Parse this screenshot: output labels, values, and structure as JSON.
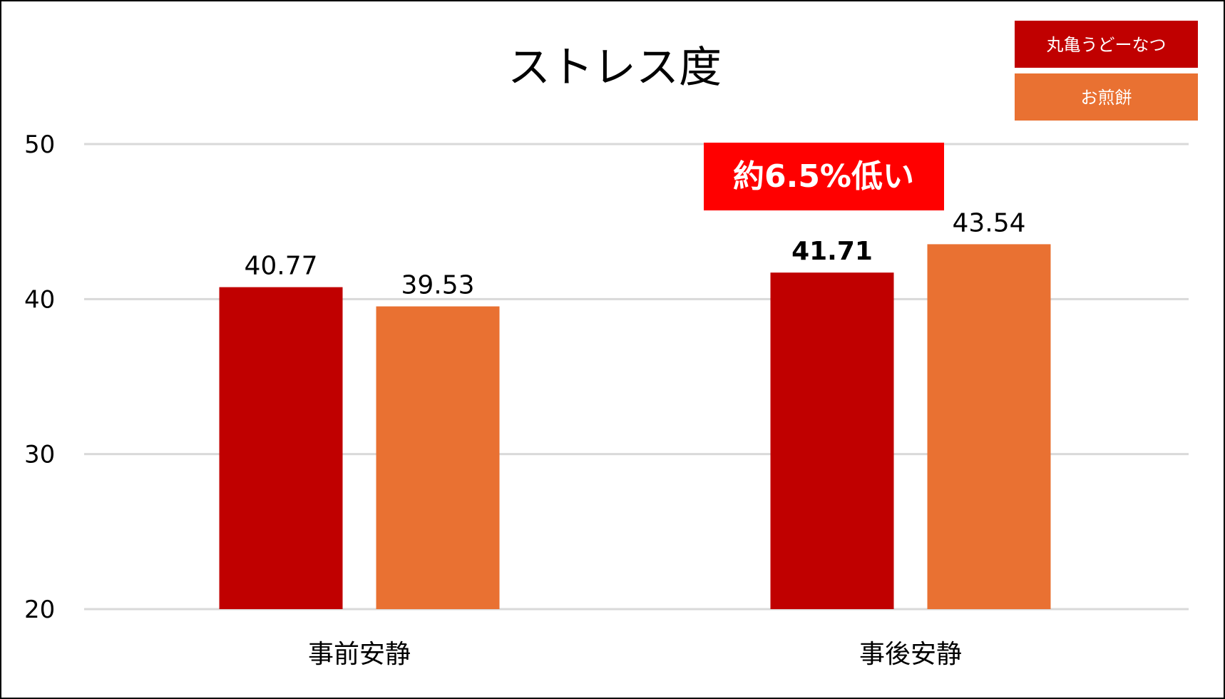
{
  "chart_data": {
    "type": "bar",
    "title": "ストレス度",
    "xlabel": "",
    "ylabel": "",
    "categories": [
      "事前安静",
      "事後安静"
    ],
    "series": [
      {
        "name": "丸亀うどーなつ",
        "values": [
          40.77,
          41.71
        ],
        "color": "#C00000"
      },
      {
        "name": "お煎餅",
        "values": [
          39.53,
          43.54
        ],
        "color": "#E97132"
      }
    ],
    "ylim": [
      20,
      50
    ],
    "yticks": [
      20,
      30,
      40,
      50
    ],
    "grid": true,
    "legend_position": "top-right",
    "data_labels": [
      [
        "40.77",
        "41.71"
      ],
      [
        "39.53",
        "43.54"
      ]
    ],
    "highlighted_label": {
      "series": 0,
      "category": 1,
      "color": "#C00000"
    },
    "annotation": {
      "text": "約6.5%低い",
      "background": "#FF0000",
      "color": "#FFFFFF"
    },
    "gridline_color": "#D9D9D9"
  }
}
